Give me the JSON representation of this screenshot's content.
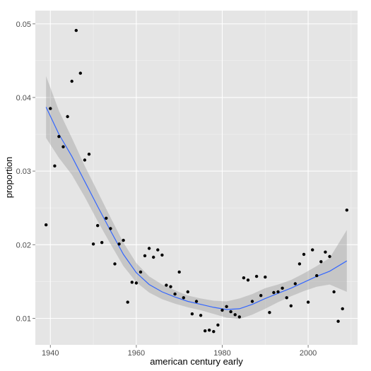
{
  "chart_data": {
    "type": "scatter",
    "title": "",
    "xlabel": "american century early",
    "ylabel": "proportion",
    "xlim": [
      1936.5,
      2011.5
    ],
    "ylim": [
      0.0064,
      0.0518
    ],
    "x_ticks": [
      1940,
      1960,
      1980,
      2000
    ],
    "y_ticks": [
      0.01,
      0.02,
      0.03,
      0.04,
      0.05
    ],
    "x_tick_labels": [
      "1940",
      "1960",
      "1980",
      "2000"
    ],
    "y_tick_labels": [
      "0.01",
      "0.02",
      "0.03",
      "0.04",
      "0.05"
    ],
    "grid": true,
    "points": {
      "x": [
        1939,
        1940,
        1941,
        1942,
        1943,
        1944,
        1945,
        1946,
        1947,
        1948,
        1949,
        1950,
        1951,
        1952,
        1953,
        1954,
        1955,
        1956,
        1957,
        1958,
        1959,
        1960,
        1961,
        1962,
        1963,
        1964,
        1965,
        1966,
        1967,
        1968,
        1969,
        1970,
        1971,
        1972,
        1973,
        1974,
        1975,
        1976,
        1977,
        1978,
        1979,
        1980,
        1981,
        1982,
        1983,
        1984,
        1985,
        1986,
        1987,
        1988,
        1989,
        1990,
        1991,
        1992,
        1993,
        1994,
        1995,
        1996,
        1997,
        1998,
        1999,
        2000,
        2001,
        2002,
        2003,
        2004,
        2005,
        2006,
        2007,
        2008,
        2009
      ],
      "y": [
        0.0227,
        0.0385,
        0.0307,
        0.0347,
        0.0333,
        0.0374,
        0.0422,
        0.0491,
        0.0433,
        0.0315,
        0.0323,
        0.0201,
        0.0226,
        0.0203,
        0.0236,
        0.0222,
        0.0174,
        0.0201,
        0.0206,
        0.0122,
        0.0149,
        0.0148,
        0.0163,
        0.0185,
        0.0195,
        0.0183,
        0.0193,
        0.0186,
        0.0145,
        0.0143,
        0.0133,
        0.0163,
        0.0128,
        0.0136,
        0.0106,
        0.0123,
        0.0104,
        0.0083,
        0.0084,
        0.0082,
        0.0091,
        0.0111,
        0.0116,
        0.0109,
        0.0105,
        0.0102,
        0.0155,
        0.0152,
        0.0123,
        0.0157,
        0.0131,
        0.0156,
        0.0108,
        0.0135,
        0.0136,
        0.0141,
        0.0128,
        0.0117,
        0.0147,
        0.0174,
        0.0187,
        0.0122,
        0.0193,
        0.0158,
        0.0177,
        0.019,
        0.0184,
        0.0136,
        0.0096,
        0.0113,
        0.0247
      ]
    },
    "smooth": {
      "x": [
        1939,
        1942,
        1945,
        1948,
        1951,
        1954,
        1957,
        1960,
        1963,
        1966,
        1969,
        1972,
        1975,
        1978,
        1981,
        1984,
        1987,
        1990,
        1993,
        1996,
        1999,
        2002,
        2005,
        2009
      ],
      "y": [
        0.0387,
        0.035,
        0.032,
        0.0286,
        0.0252,
        0.0219,
        0.0187,
        0.0162,
        0.0146,
        0.0136,
        0.0129,
        0.0123,
        0.0119,
        0.0115,
        0.0112,
        0.0113,
        0.0119,
        0.0127,
        0.0134,
        0.0141,
        0.0149,
        0.0157,
        0.0164,
        0.0178
      ],
      "lower": [
        0.0345,
        0.0318,
        0.0295,
        0.0265,
        0.0232,
        0.0201,
        0.0171,
        0.0149,
        0.0135,
        0.0126,
        0.012,
        0.0115,
        0.0111,
        0.0106,
        0.0101,
        0.0099,
        0.0105,
        0.0113,
        0.0122,
        0.013,
        0.0137,
        0.0143,
        0.0146,
        0.0136
      ],
      "upper": [
        0.0429,
        0.0382,
        0.0345,
        0.0307,
        0.0272,
        0.0237,
        0.0203,
        0.0175,
        0.0157,
        0.0146,
        0.0138,
        0.0131,
        0.0127,
        0.0124,
        0.0123,
        0.0127,
        0.0133,
        0.0141,
        0.0146,
        0.0152,
        0.0161,
        0.0171,
        0.0182,
        0.022
      ]
    },
    "colors": {
      "panel": "#e5e5e5",
      "grid_major": "#ffffff",
      "grid_minor": "#f2f2f2",
      "points": "#000000",
      "line": "#3366ff",
      "band": "#999999"
    }
  }
}
